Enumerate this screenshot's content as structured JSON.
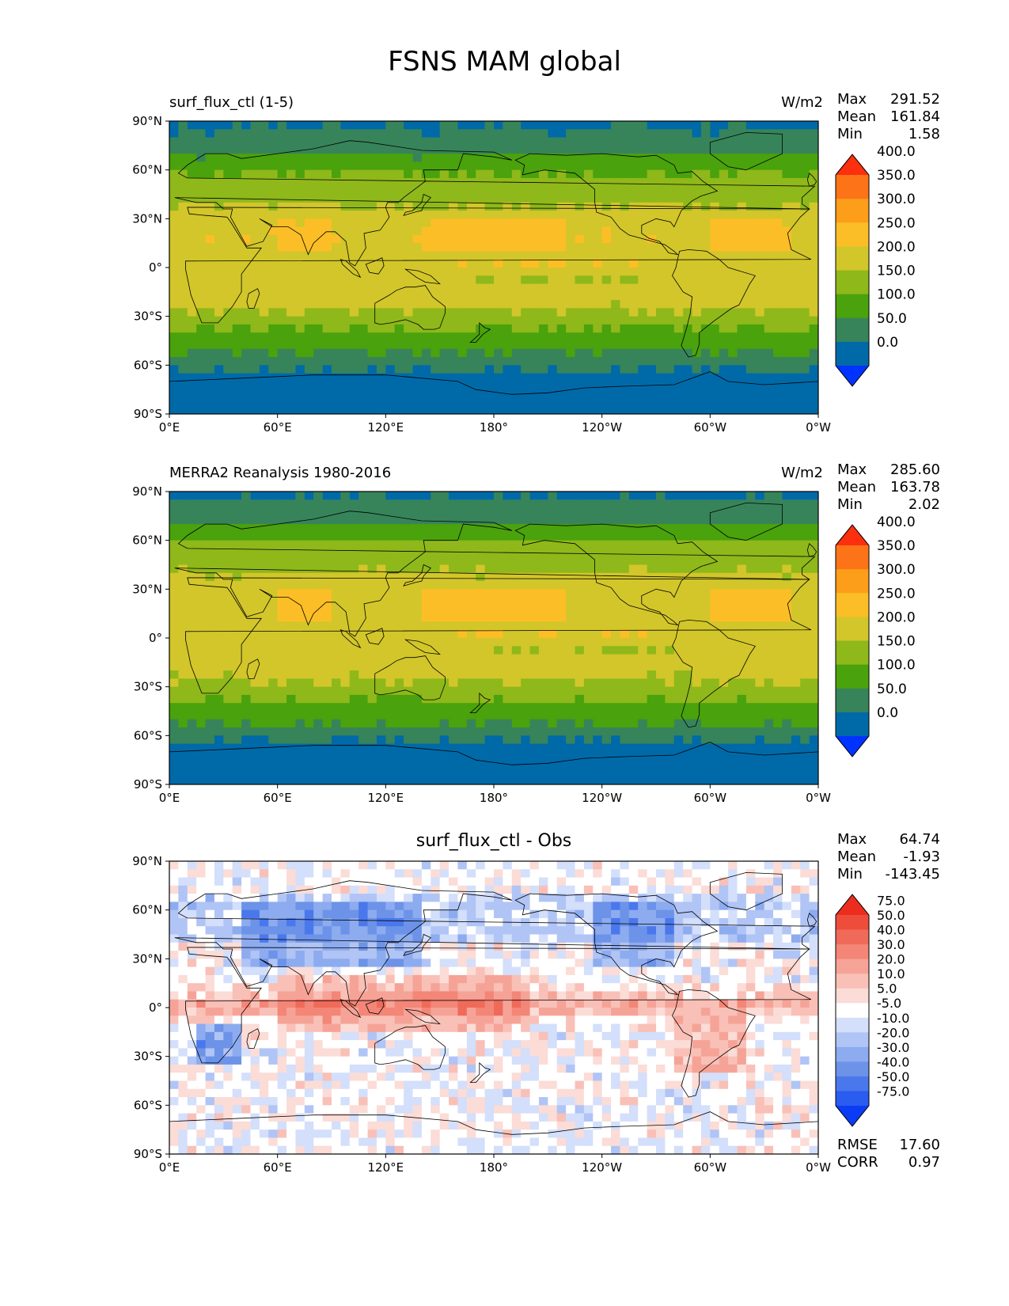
{
  "title": "FSNS MAM global",
  "colors": {
    "abs_levels": [
      "#0033ff",
      "#006aa8",
      "#37845a",
      "#4aa20c",
      "#8fb81a",
      "#d2c62a",
      "#fcbe26",
      "#fc9e19",
      "#fc7417",
      "#fc2f0e"
    ],
    "diff_levels": [
      "#0b3cf5",
      "#2a5cf0",
      "#4a78ec",
      "#6c93e8",
      "#8dabef",
      "#b0c4f5",
      "#d3dffb",
      "#ffffff",
      "#fbdcd6",
      "#f9c0b7",
      "#f6a397",
      "#f38677",
      "#f06a5a",
      "#ee4d3c",
      "#ec2d1e"
    ],
    "coast": "#000000"
  },
  "panels": [
    {
      "id": "model",
      "left_title": "surf_flux_ctl (1-5)",
      "right_title": "W/m2",
      "center_title": "",
      "stats": [
        {
          "label": "Max",
          "value": "291.52"
        },
        {
          "label": "Mean",
          "value": "161.84"
        },
        {
          "label": "Min",
          "value": "1.58"
        }
      ],
      "extra_stats": [],
      "colorbar_labels": [
        "0.0",
        "50.0",
        "100.0",
        "150.0",
        "200.0",
        "250.0",
        "300.0",
        "350.0",
        "400.0"
      ],
      "field": "model"
    },
    {
      "id": "obs",
      "left_title": "MERRA2 Reanalysis 1980-2016",
      "right_title": "W/m2",
      "center_title": "",
      "stats": [
        {
          "label": "Max",
          "value": "285.60"
        },
        {
          "label": "Mean",
          "value": "163.78"
        },
        {
          "label": "Min",
          "value": "2.02"
        }
      ],
      "extra_stats": [],
      "colorbar_labels": [
        "0.0",
        "50.0",
        "100.0",
        "150.0",
        "200.0",
        "250.0",
        "300.0",
        "350.0",
        "400.0"
      ],
      "field": "obs"
    },
    {
      "id": "diff",
      "left_title": "",
      "right_title": "",
      "center_title": "surf_flux_ctl - Obs",
      "stats": [
        {
          "label": "Max",
          "value": "64.74"
        },
        {
          "label": "Mean",
          "value": "-1.93"
        },
        {
          "label": "Min",
          "value": "-143.45"
        }
      ],
      "extra_stats": [
        {
          "label": "RMSE",
          "value": "17.60"
        },
        {
          "label": "CORR",
          "value": "0.97"
        }
      ],
      "colorbar_labels": [
        "-75.0",
        "-50.0",
        "-40.0",
        "-30.0",
        "-20.0",
        "-10.0",
        "-5.0",
        "5.0",
        "10.0",
        "20.0",
        "30.0",
        "40.0",
        "50.0",
        "75.0"
      ],
      "field": "diff"
    }
  ],
  "axes": {
    "x_ticks": [
      "0°E",
      "60°E",
      "120°E",
      "180°",
      "120°W",
      "60°W",
      "0°W"
    ],
    "y_ticks": [
      "90°N",
      "60°N",
      "30°N",
      "0°",
      "30°S",
      "60°S",
      "90°S"
    ]
  },
  "chart_data": [
    {
      "type": "heatmap",
      "title": "surf_flux_ctl (1-5)",
      "units": "W/m2",
      "x_range": [
        0,
        360
      ],
      "y_range": [
        -90,
        90
      ],
      "levels": [
        0,
        50,
        100,
        150,
        200,
        250,
        300,
        350,
        400
      ],
      "zonal_profile_lat": [
        90,
        75,
        65,
        55,
        45,
        35,
        25,
        15,
        5,
        0,
        -5,
        -15,
        -25,
        -35,
        -45,
        -55,
        -65,
        -75,
        -90
      ],
      "zonal_profile_value": [
        40,
        75,
        120,
        160,
        175,
        210,
        240,
        245,
        215,
        210,
        220,
        220,
        205,
        160,
        120,
        90,
        40,
        35,
        35
      ],
      "stats": {
        "max": 291.52,
        "mean": 161.84,
        "min": 1.58
      }
    },
    {
      "type": "heatmap",
      "title": "MERRA2 Reanalysis 1980-2016",
      "units": "W/m2",
      "x_range": [
        0,
        360
      ],
      "y_range": [
        -90,
        90
      ],
      "levels": [
        0,
        50,
        100,
        150,
        200,
        250,
        300,
        350,
        400
      ],
      "zonal_profile_lat": [
        90,
        75,
        65,
        55,
        45,
        35,
        25,
        15,
        5,
        0,
        -5,
        -15,
        -25,
        -35,
        -45,
        -55,
        -65,
        -75,
        -90
      ],
      "zonal_profile_value": [
        40,
        80,
        125,
        170,
        185,
        215,
        240,
        240,
        215,
        210,
        215,
        215,
        205,
        165,
        125,
        95,
        40,
        35,
        35
      ],
      "stats": {
        "max": 285.6,
        "mean": 163.78,
        "min": 2.02
      }
    },
    {
      "type": "heatmap",
      "title": "surf_flux_ctl - Obs",
      "x_range": [
        0,
        360
      ],
      "y_range": [
        -90,
        90
      ],
      "levels": [
        -75,
        -50,
        -40,
        -30,
        -20,
        -10,
        -5,
        5,
        10,
        20,
        30,
        40,
        50,
        75
      ],
      "zonal_profile_lat": [
        90,
        70,
        55,
        40,
        30,
        15,
        5,
        0,
        -5,
        -15,
        -25,
        -35,
        -50,
        -70,
        -90
      ],
      "zonal_profile_value": [
        0,
        -8,
        -15,
        -18,
        -8,
        5,
        25,
        28,
        15,
        -4,
        -8,
        -6,
        0,
        0,
        0
      ],
      "stats": {
        "max": 64.74,
        "mean": -1.93,
        "min": -143.45,
        "rmse": 17.6,
        "corr": 0.97
      }
    }
  ]
}
